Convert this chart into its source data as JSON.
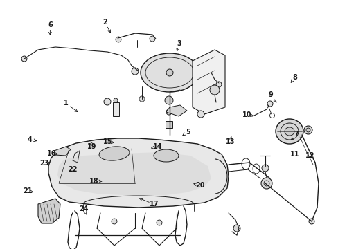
{
  "bg_color": "#ffffff",
  "line_color": "#1a1a1a",
  "fig_width": 4.89,
  "fig_height": 3.6,
  "dpi": 100,
  "label_positions": {
    "1": [
      0.195,
      0.415,
      0.235,
      0.455
    ],
    "2": [
      0.31,
      0.09,
      0.33,
      0.14
    ],
    "3": [
      0.53,
      0.175,
      0.52,
      0.215
    ],
    "4": [
      0.088,
      0.56,
      0.115,
      0.568
    ],
    "5": [
      0.555,
      0.53,
      0.538,
      0.545
    ],
    "6": [
      0.148,
      0.1,
      0.148,
      0.15
    ],
    "7": [
      0.875,
      0.54,
      0.855,
      0.57
    ],
    "8": [
      0.87,
      0.31,
      0.855,
      0.34
    ],
    "9": [
      0.8,
      0.38,
      0.82,
      0.42
    ],
    "10": [
      0.73,
      0.46,
      0.755,
      0.468
    ],
    "11": [
      0.87,
      0.62,
      0.873,
      0.603
    ],
    "12": [
      0.915,
      0.625,
      0.907,
      0.607
    ],
    "13": [
      0.68,
      0.57,
      0.683,
      0.547
    ],
    "14": [
      0.465,
      0.59,
      0.445,
      0.595
    ],
    "15": [
      0.318,
      0.57,
      0.338,
      0.573
    ],
    "16": [
      0.152,
      0.618,
      0.178,
      0.618
    ],
    "17": [
      0.455,
      0.82,
      0.405,
      0.793
    ],
    "18": [
      0.278,
      0.728,
      0.308,
      0.728
    ],
    "19": [
      0.272,
      0.59,
      0.268,
      0.56
    ],
    "20": [
      0.59,
      0.745,
      0.565,
      0.735
    ],
    "21": [
      0.082,
      0.768,
      0.105,
      0.772
    ],
    "22": [
      0.215,
      0.68,
      0.222,
      0.66
    ],
    "23": [
      0.13,
      0.655,
      0.155,
      0.652
    ],
    "24": [
      0.248,
      0.84,
      0.258,
      0.87
    ]
  }
}
